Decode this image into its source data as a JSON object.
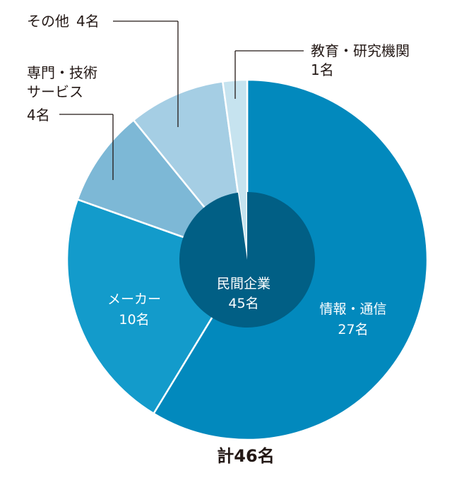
{
  "chart_data": {
    "type": "pie",
    "slices": [
      {
        "label_line1": "情報・通信",
        "label_line2": "27名",
        "value": 27,
        "color": "#0289bd"
      },
      {
        "label_line1": "メーカー",
        "label_line2": "10名",
        "value": 10,
        "color": "#139bcb"
      },
      {
        "label_line1": "専門・技術",
        "label_line1b": "サービス",
        "label_line2": "4名",
        "value": 4,
        "color": "#7db8d6"
      },
      {
        "label_line1": "その他",
        "label_line2": "4名",
        "value": 4,
        "color": "#a5cee4"
      },
      {
        "label_line1": "教育・研究機関",
        "label_line2": "1名",
        "value": 1,
        "color": "#c6e3ef"
      }
    ],
    "inner_group": {
      "label": "民間企業",
      "count_label": "45名",
      "value": 45,
      "color": "#015f85"
    },
    "total_label": "計46名",
    "total": 46
  }
}
